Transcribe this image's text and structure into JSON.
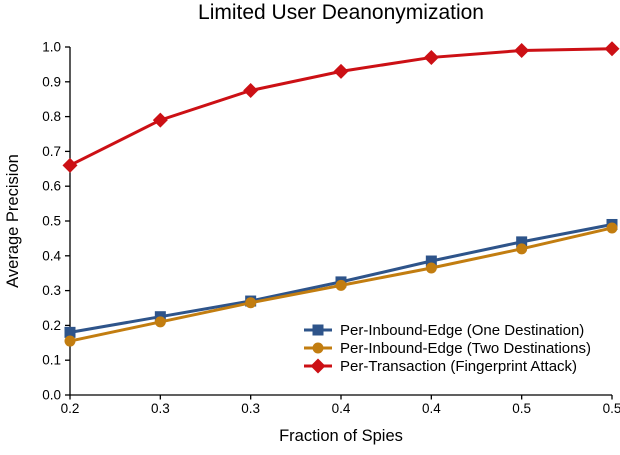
{
  "chart_data": {
    "type": "line",
    "title": "Limited User Deanonymization",
    "xlabel": "Fraction of Spies",
    "ylabel": "Average Precision",
    "x": [
      0.2,
      0.25,
      0.3,
      0.35,
      0.4,
      0.45,
      0.5
    ],
    "x_tick_labels": [
      "0.2",
      "0.3",
      "0.3",
      "0.4",
      "0.4",
      "0.5",
      "0.5"
    ],
    "y_ticks": [
      0.0,
      0.1,
      0.2,
      0.3,
      0.4,
      0.5,
      0.6,
      0.7,
      0.8,
      0.9,
      1.0
    ],
    "y_tick_labels": [
      "0.0",
      "0.1",
      "0.2",
      "0.3",
      "0.4",
      "0.5",
      "0.6",
      "0.7",
      "0.8",
      "0.9",
      "1.0"
    ],
    "ylim": [
      0.0,
      1.0
    ],
    "grid": false,
    "legend_position": "inside-lower-right",
    "axis_color": "#000000",
    "text_color": "#000000",
    "background": "#FFFFFF",
    "series": [
      {
        "name": "Per-Inbound-Edge (One Destination)",
        "marker": "square",
        "color": "#2E548A",
        "values": [
          0.18,
          0.225,
          0.27,
          0.325,
          0.385,
          0.44,
          0.49
        ]
      },
      {
        "name": "Per-Inbound-Edge (Two Destinations)",
        "marker": "circle",
        "color": "#C27D10",
        "values": [
          0.155,
          0.21,
          0.265,
          0.315,
          0.365,
          0.42,
          0.48
        ]
      },
      {
        "name": "Per-Transaction (Fingerprint Attack)",
        "marker": "diamond",
        "color": "#CC1015",
        "values": [
          0.66,
          0.79,
          0.875,
          0.93,
          0.97,
          0.99,
          0.995
        ]
      }
    ]
  }
}
